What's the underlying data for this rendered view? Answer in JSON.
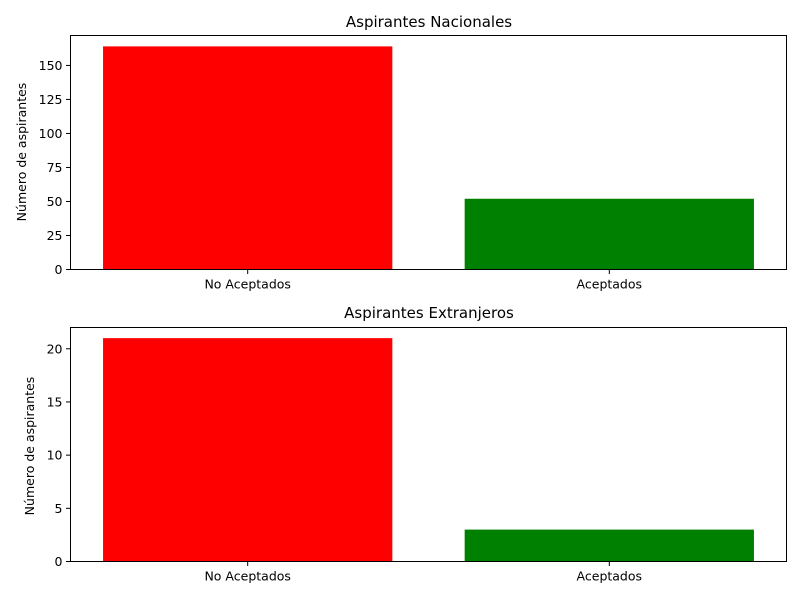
{
  "chart_data": [
    {
      "type": "bar",
      "title": "Aspirantes Nacionales",
      "categories": [
        "No Aceptados",
        "Aceptados"
      ],
      "values": [
        164,
        52
      ],
      "colors": [
        "#ff0000",
        "#008000"
      ],
      "xlabel": "",
      "ylabel": "Número de aspirantes",
      "ylim": [
        0,
        172
      ],
      "yticks": [
        0,
        25,
        50,
        75,
        100,
        125,
        150
      ],
      "grid": false
    },
    {
      "type": "bar",
      "title": "Aspirantes Extranjeros",
      "categories": [
        "No Aceptados",
        "Aceptados"
      ],
      "values": [
        21,
        3
      ],
      "colors": [
        "#ff0000",
        "#008000"
      ],
      "xlabel": "",
      "ylabel": "Número de aspirantes",
      "ylim": [
        0,
        22
      ],
      "yticks": [
        0,
        5,
        10,
        15,
        20
      ],
      "grid": false
    }
  ]
}
